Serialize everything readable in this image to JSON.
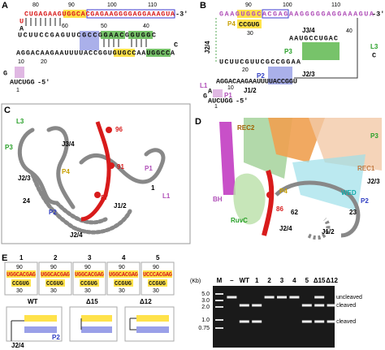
{
  "a": {
    "letter": "A",
    "top": "CUGAGAAGUGGCACGAGAAGGGGAGGAAAGUA",
    "end3": "-3'",
    "u": "U",
    "aa": "A",
    "mid": "UCUUCCGAGUUCGCCGGAACGGUGGC",
    "c": "C",
    "low": "AGGACAAGAAUUUUACCGGUGUGCCAAUGGCCA",
    "g": "G",
    "bot": "AUCUGG",
    "end5": "-5'",
    "nums": [
      "80",
      "90",
      "100",
      "110",
      "60",
      "50",
      "40",
      "20",
      "10",
      "1"
    ]
  },
  "b": {
    "letter": "B",
    "top": "GAAGUGGCACGAGAAGGGGGAGGAAAGUA",
    "end3": "-3'",
    "nums": [
      "90",
      "100",
      "110",
      "30",
      "40",
      "20",
      "10",
      "1"
    ],
    "p4": "P4",
    "p4seq": "CCGUG",
    "j34": "J3/4",
    "j34seq": "AAUGCCUGAC",
    "l3": "L3",
    "c": "C",
    "p3": "P3",
    "j24": "J2/4",
    "mid": "UCUUCGUUCGCCGGAA",
    "p2": "P2",
    "j23": "J2/3",
    "low": "AGGACAAGAAUUUUACCGGU",
    "j12": "J1/2",
    "l1": "L1",
    "p1": "P1",
    "aa": "A",
    "g": "G",
    "bot": "AUCUGG",
    "end5": "-5'"
  },
  "c": {
    "letter": "C",
    "labels": [
      "L3",
      "P3",
      "J3/4",
      "96",
      "91",
      "P4",
      "P1",
      "87",
      "J2/3",
      "24",
      "P2",
      "J1/2",
      "1",
      "L1",
      "J2/4"
    ]
  },
  "d": {
    "letter": "D",
    "labels": [
      "REC2",
      "P3",
      "REC1",
      "WED",
      "P2",
      "BH",
      "P4",
      "86",
      "62",
      "RuvC",
      "J2/4",
      "J1/2",
      "J2/3",
      "23"
    ]
  },
  "e": {
    "letter": "E",
    "constructs": [
      {
        "id": "1",
        "seq": "UGGCACGAG"
      },
      {
        "id": "2",
        "seq": "UGGCACGAG"
      },
      {
        "id": "3",
        "seq": "UGGCACGAG"
      },
      {
        "id": "4",
        "seq": "UGGCACGAG"
      },
      {
        "id": "5",
        "seq": "UCCCACGAG"
      }
    ],
    "n90": "90",
    "stem": "CCGUG",
    "n30": "30",
    "wt": "WT",
    "d15": "Δ15",
    "d12": "Δ12",
    "p2": "P2",
    "j24": "J2/4"
  },
  "gel": {
    "unit": "(Kb)",
    "lanes": [
      "M",
      "–",
      "WT",
      "1",
      "2",
      "3",
      "4",
      "5",
      "Δ15",
      "Δ12"
    ],
    "sizes": [
      "5.0",
      "3.0",
      "2.0",
      "1.0",
      "0.75"
    ],
    "bands": [
      "uncleaved",
      "cleaved",
      "cleaved"
    ]
  }
}
